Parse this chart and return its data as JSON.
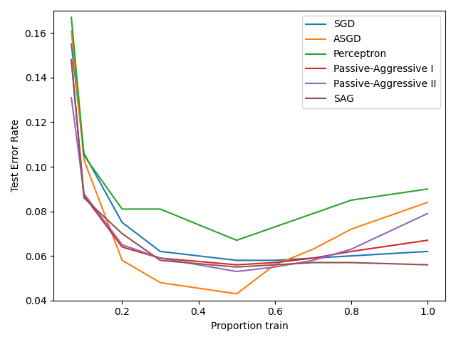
{
  "x": [
    0.067,
    0.1,
    0.2,
    0.3,
    0.5,
    0.6,
    0.7,
    0.8,
    1.0
  ],
  "series": {
    "SGD": {
      "y": [
        0.155,
        0.106,
        0.075,
        0.062,
        0.058,
        0.058,
        0.059,
        0.06,
        0.062
      ],
      "color": "#1f77b4"
    },
    "ASGD": {
      "y": [
        0.161,
        0.103,
        0.058,
        0.048,
        0.043,
        0.056,
        0.063,
        0.072,
        0.084
      ],
      "color": "#ff7f0e"
    },
    "Perceptron": {
      "y": [
        0.167,
        0.105,
        0.081,
        0.081,
        0.067,
        0.073,
        0.079,
        0.085,
        0.09
      ],
      "color": "#2ca02c"
    },
    "Passive-Aggressive I": {
      "y": [
        0.148,
        0.087,
        0.064,
        0.059,
        0.056,
        0.057,
        0.059,
        0.062,
        0.067
      ],
      "color": "#d62728"
    },
    "Passive-Aggressive II": {
      "y": [
        0.131,
        0.088,
        0.065,
        0.059,
        0.053,
        0.055,
        0.058,
        0.063,
        0.079
      ],
      "color": "#9467bd"
    },
    "SAG": {
      "y": [
        0.148,
        0.086,
        0.07,
        0.058,
        0.055,
        0.056,
        0.057,
        0.057,
        0.056
      ],
      "color": "#8c564b"
    }
  },
  "xlabel": "Proportion train",
  "ylabel": "Test Error Rate",
  "ylim": [
    0.04,
    0.17
  ],
  "xticks": [
    0.2,
    0.4,
    0.6,
    0.8,
    1.0
  ],
  "legend_loc": "upper right",
  "figsize": [
    6.4,
    4.8
  ],
  "dpi": 100
}
